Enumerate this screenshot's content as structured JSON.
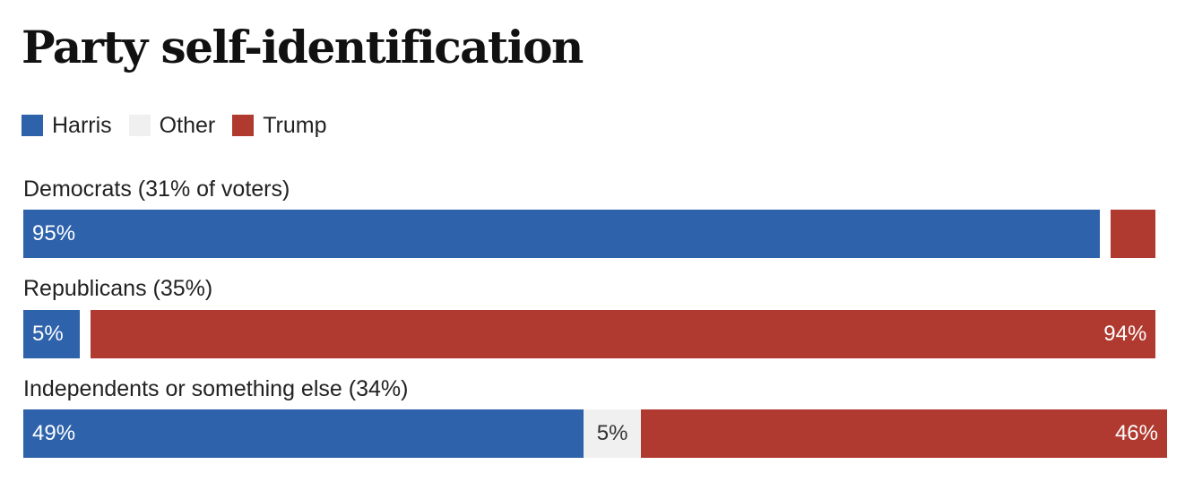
{
  "title": "Party self-identification",
  "colors": {
    "harris": "#2e62ab",
    "other": "#f0f0f0",
    "trump": "#b03930"
  },
  "legend": [
    {
      "key": "harris",
      "label": "Harris",
      "icon": "harris-swatch"
    },
    {
      "key": "other",
      "label": "Other",
      "icon": "other-swatch"
    },
    {
      "key": "trump",
      "label": "Trump",
      "icon": "trump-swatch"
    }
  ],
  "chart_data": {
    "type": "bar",
    "orientation": "horizontal",
    "stacked": true,
    "title": "Party self-identification",
    "categories": [
      "Democrats (31% of voters)",
      "Republicans (35%)",
      "Independents or something else (34%)"
    ],
    "series": [
      {
        "name": "Harris",
        "values": [
          95,
          5,
          49
        ]
      },
      {
        "name": "Other",
        "values": [
          1,
          1,
          5
        ]
      },
      {
        "name": "Trump",
        "values": [
          4,
          94,
          46
        ]
      }
    ],
    "data_labels": [
      [
        "95%",
        "",
        ""
      ],
      [
        "5%",
        "",
        "94%"
      ],
      [
        "49%",
        "5%",
        "46%"
      ]
    ],
    "xlim": [
      0,
      100
    ],
    "unit": "%",
    "legend_position": "top-left",
    "grid": false
  }
}
